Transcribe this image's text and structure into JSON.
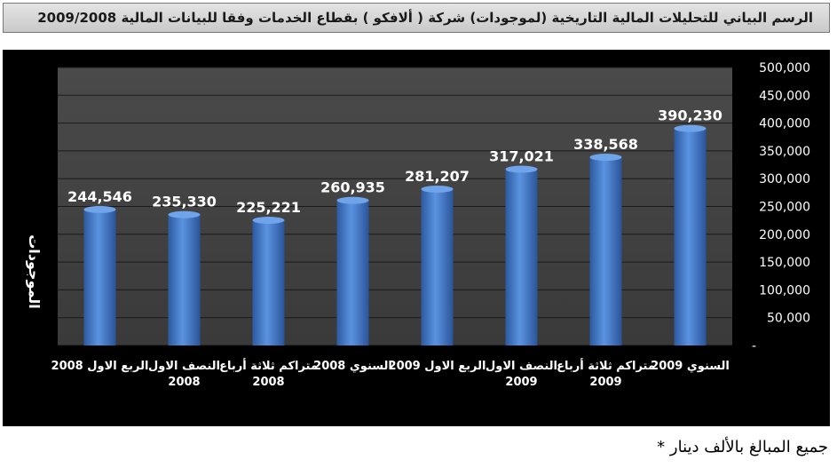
{
  "header": {
    "title": "الرسم البياني للتحليلات المالية التاريخية (لموجودات) شركة ( ألافكو ) بقطاع الخدمات وفقا للبيانات المالية 2009/2008"
  },
  "footnote": "جميع المبالغ بالألف دينار *",
  "colors": {
    "background": "#000000",
    "plot_area": "#474747",
    "bar": "#3f74c2",
    "text": "#ffffff"
  },
  "chart_data": {
    "type": "bar",
    "ylabel": "الموجودات",
    "ylim": [
      0,
      500000
    ],
    "yticks": [
      "-",
      "50,000",
      "100,000",
      "150,000",
      "200,000",
      "250,000",
      "300,000",
      "350,000",
      "400,000",
      "450,000",
      "500,000"
    ],
    "grid": true,
    "y_axis_side": "right",
    "categories": [
      [
        "الربع الاول 2008"
      ],
      [
        "النصف الاول",
        "2008"
      ],
      [
        "متراكم ثلاثة أرباع",
        "2008"
      ],
      [
        "السنوي 2008"
      ],
      [
        "الربع الاول 2009"
      ],
      [
        "النصف الاول",
        "2009"
      ],
      [
        "متراكم ثلاثة أرباع",
        "2009"
      ],
      [
        "السنوي 2009"
      ]
    ],
    "values": [
      244546,
      235330,
      225221,
      260935,
      281207,
      317021,
      338568,
      390230
    ],
    "data_labels": [
      "244,546",
      "235,330",
      "225,221",
      "260,935",
      "281,207",
      "317,021",
      "338,568",
      "390,230"
    ]
  }
}
